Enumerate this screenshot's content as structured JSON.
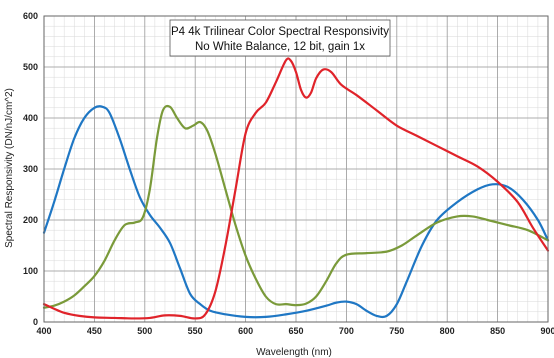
{
  "chart_data": {
    "type": "line",
    "title": "P4 4k Trilinear Color Spectral Responsivity",
    "subtitle": "No White Balance, 12 bit, gain 1x",
    "xlabel": "Wavelength (nm)",
    "ylabel": "Spectral Responsivity (DN/nJ/cm^2)",
    "xlim": [
      400,
      900
    ],
    "ylim": [
      0,
      600
    ],
    "xticks": [
      "400",
      "450",
      "500",
      "550",
      "600",
      "650",
      "700",
      "750",
      "800",
      "850",
      "900"
    ],
    "yticks": [
      "0",
      "100",
      "200",
      "300",
      "400",
      "500",
      "600"
    ],
    "grid": true,
    "legend": "none",
    "series": [
      {
        "color": "#1f77c4",
        "points": [
          [
            400,
            175
          ],
          [
            410,
            235
          ],
          [
            420,
            300
          ],
          [
            430,
            360
          ],
          [
            440,
            400
          ],
          [
            450,
            420
          ],
          [
            458,
            422
          ],
          [
            465,
            410
          ],
          [
            475,
            360
          ],
          [
            485,
            300
          ],
          [
            495,
            245
          ],
          [
            505,
            210
          ],
          [
            515,
            185
          ],
          [
            525,
            155
          ],
          [
            535,
            105
          ],
          [
            545,
            55
          ],
          [
            555,
            35
          ],
          [
            565,
            22
          ],
          [
            580,
            15
          ],
          [
            600,
            10
          ],
          [
            620,
            10
          ],
          [
            640,
            15
          ],
          [
            660,
            22
          ],
          [
            680,
            32
          ],
          [
            690,
            38
          ],
          [
            700,
            40
          ],
          [
            710,
            35
          ],
          [
            720,
            22
          ],
          [
            730,
            12
          ],
          [
            740,
            12
          ],
          [
            750,
            35
          ],
          [
            760,
            80
          ],
          [
            775,
            150
          ],
          [
            790,
            200
          ],
          [
            810,
            235
          ],
          [
            830,
            260
          ],
          [
            845,
            270
          ],
          [
            860,
            265
          ],
          [
            875,
            240
          ],
          [
            890,
            200
          ],
          [
            900,
            160
          ]
        ]
      },
      {
        "color": "#7a9a3a",
        "points": [
          [
            400,
            28
          ],
          [
            410,
            32
          ],
          [
            420,
            40
          ],
          [
            430,
            52
          ],
          [
            440,
            70
          ],
          [
            450,
            90
          ],
          [
            460,
            120
          ],
          [
            470,
            160
          ],
          [
            480,
            190
          ],
          [
            490,
            195
          ],
          [
            498,
            205
          ],
          [
            505,
            260
          ],
          [
            512,
            360
          ],
          [
            518,
            415
          ],
          [
            525,
            422
          ],
          [
            532,
            400
          ],
          [
            540,
            380
          ],
          [
            548,
            385
          ],
          [
            555,
            392
          ],
          [
            562,
            375
          ],
          [
            570,
            330
          ],
          [
            580,
            260
          ],
          [
            590,
            190
          ],
          [
            600,
            130
          ],
          [
            610,
            85
          ],
          [
            620,
            50
          ],
          [
            630,
            35
          ],
          [
            640,
            35
          ],
          [
            650,
            33
          ],
          [
            660,
            36
          ],
          [
            670,
            50
          ],
          [
            680,
            80
          ],
          [
            690,
            115
          ],
          [
            700,
            132
          ],
          [
            720,
            135
          ],
          [
            740,
            138
          ],
          [
            755,
            150
          ],
          [
            770,
            170
          ],
          [
            790,
            195
          ],
          [
            810,
            207
          ],
          [
            825,
            207
          ],
          [
            840,
            200
          ],
          [
            860,
            190
          ],
          [
            880,
            180
          ],
          [
            900,
            160
          ]
        ]
      },
      {
        "color": "#e0232a",
        "points": [
          [
            400,
            35
          ],
          [
            410,
            26
          ],
          [
            420,
            18
          ],
          [
            435,
            12
          ],
          [
            450,
            9
          ],
          [
            470,
            8
          ],
          [
            490,
            7
          ],
          [
            505,
            8
          ],
          [
            520,
            13
          ],
          [
            535,
            12
          ],
          [
            550,
            7
          ],
          [
            560,
            15
          ],
          [
            570,
            60
          ],
          [
            580,
            150
          ],
          [
            590,
            260
          ],
          [
            600,
            370
          ],
          [
            610,
            410
          ],
          [
            620,
            430
          ],
          [
            630,
            470
          ],
          [
            640,
            513
          ],
          [
            645,
            512
          ],
          [
            650,
            490
          ],
          [
            655,
            455
          ],
          [
            660,
            440
          ],
          [
            665,
            450
          ],
          [
            670,
            478
          ],
          [
            677,
            495
          ],
          [
            685,
            490
          ],
          [
            695,
            465
          ],
          [
            710,
            445
          ],
          [
            730,
            415
          ],
          [
            750,
            385
          ],
          [
            770,
            365
          ],
          [
            790,
            345
          ],
          [
            810,
            325
          ],
          [
            830,
            305
          ],
          [
            850,
            275
          ],
          [
            870,
            235
          ],
          [
            885,
            185
          ],
          [
            900,
            140
          ]
        ]
      }
    ]
  }
}
